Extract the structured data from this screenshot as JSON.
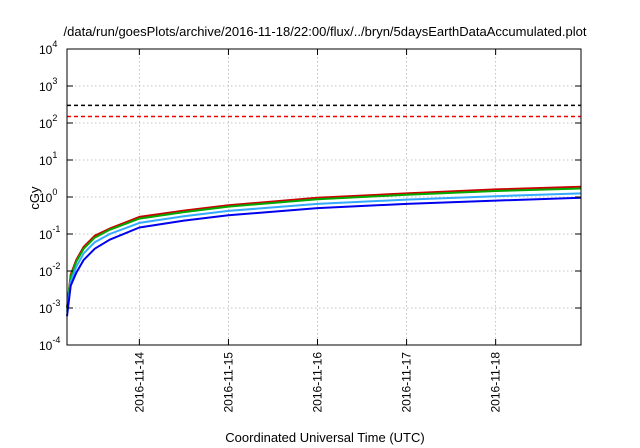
{
  "chart_data": {
    "type": "line",
    "title": "/data/run/goesPlots/archive/2016-11-18/22:00/flux/../bryn/5daysEarthDataAccumulated.plot",
    "xlabel": "Coordinated Universal Time (UTC)",
    "ylabel": "cGy",
    "y_scale": "log",
    "ylim": [
      0.0001,
      10000
    ],
    "xlim": [
      "2016-11-13T04:30",
      "2016-11-18T23:00"
    ],
    "grid": true,
    "x_ticks": [
      "2016-11-14",
      "2016-11-15",
      "2016-11-16",
      "2016-11-17",
      "2016-11-18"
    ],
    "y_ticks": [
      {
        "base": "10",
        "exp": "-4"
      },
      {
        "base": "10",
        "exp": "-3"
      },
      {
        "base": "10",
        "exp": "-2"
      },
      {
        "base": "10",
        "exp": "-1"
      },
      {
        "base": "10",
        "exp": "0"
      },
      {
        "base": "10",
        "exp": "1"
      },
      {
        "base": "10",
        "exp": "2"
      },
      {
        "base": "10",
        "exp": "3"
      },
      {
        "base": "10",
        "exp": "4"
      }
    ],
    "thresholds": [
      {
        "value": 300,
        "color": "#000000",
        "style": "dashed"
      },
      {
        "value": 150,
        "color": "#ee0000",
        "style": "dashed"
      }
    ],
    "series": [
      {
        "color": "#cc0000",
        "x": [
          "2016-11-13T04:30",
          "2016-11-13T05:30",
          "2016-11-13T07:00",
          "2016-11-13T09:00",
          "2016-11-13T12:00",
          "2016-11-13T16:00",
          "2016-11-14T00:00",
          "2016-11-14T12:00",
          "2016-11-15T00:00",
          "2016-11-16T00:00",
          "2016-11-17T00:00",
          "2016-11-18T00:00",
          "2016-11-18T23:00"
        ],
        "y": [
          0.001,
          0.008,
          0.02,
          0.045,
          0.09,
          0.14,
          0.29,
          0.43,
          0.6,
          0.95,
          1.25,
          1.6,
          1.9
        ]
      },
      {
        "color": "#00aa00",
        "x": [
          "2016-11-13T04:30",
          "2016-11-13T05:30",
          "2016-11-13T07:00",
          "2016-11-13T09:00",
          "2016-11-13T12:00",
          "2016-11-13T16:00",
          "2016-11-14T00:00",
          "2016-11-14T12:00",
          "2016-11-15T00:00",
          "2016-11-16T00:00",
          "2016-11-17T00:00",
          "2016-11-18T00:00",
          "2016-11-18T23:00"
        ],
        "y": [
          0.001,
          0.007,
          0.018,
          0.04,
          0.08,
          0.13,
          0.26,
          0.39,
          0.55,
          0.87,
          1.15,
          1.45,
          1.7
        ]
      },
      {
        "color": "#33aaff",
        "x": [
          "2016-11-13T04:30",
          "2016-11-13T05:30",
          "2016-11-13T07:00",
          "2016-11-13T09:00",
          "2016-11-13T12:00",
          "2016-11-13T16:00",
          "2016-11-14T00:00",
          "2016-11-14T12:00",
          "2016-11-15T00:00",
          "2016-11-16T00:00",
          "2016-11-17T00:00",
          "2016-11-18T00:00",
          "2016-11-18T23:00"
        ],
        "y": [
          0.0008,
          0.005,
          0.013,
          0.03,
          0.06,
          0.1,
          0.2,
          0.3,
          0.42,
          0.65,
          0.85,
          1.05,
          1.25
        ]
      },
      {
        "color": "#0000ee",
        "x": [
          "2016-11-13T04:30",
          "2016-11-13T05:30",
          "2016-11-13T07:00",
          "2016-11-13T09:00",
          "2016-11-13T12:00",
          "2016-11-13T16:00",
          "2016-11-14T00:00",
          "2016-11-14T12:00",
          "2016-11-15T00:00",
          "2016-11-16T00:00",
          "2016-11-17T00:00",
          "2016-11-18T00:00",
          "2016-11-18T23:00"
        ],
        "y": [
          0.0006,
          0.004,
          0.009,
          0.02,
          0.04,
          0.07,
          0.15,
          0.23,
          0.32,
          0.5,
          0.65,
          0.8,
          0.95
        ]
      }
    ]
  }
}
